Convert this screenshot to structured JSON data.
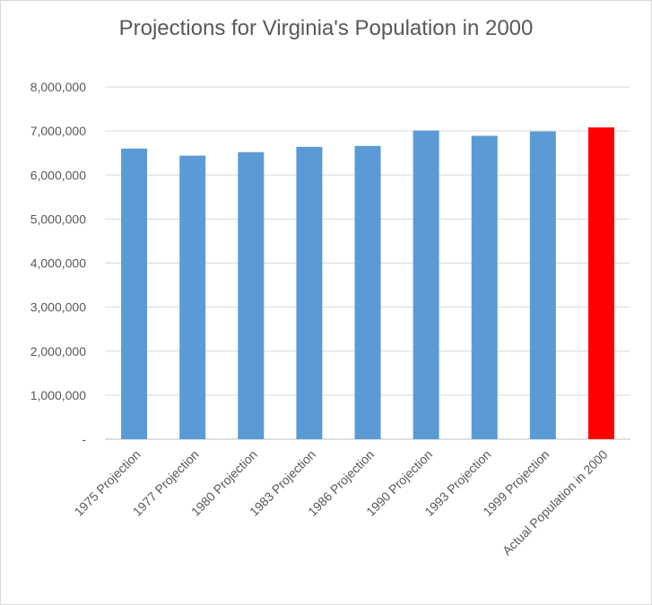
{
  "chart_data": {
    "type": "bar",
    "title": "Projections for Virginia's Population in 2000",
    "xlabel": "",
    "ylabel": "",
    "categories": [
      "1975 Projection",
      "1977 Projection",
      "1980 Projection",
      "1983 Projection",
      "1986 Projection",
      "1990 Projection",
      "1993 Projection",
      "1999 Projection",
      "Actual Population in 2000"
    ],
    "values": [
      6600000,
      6440000,
      6520000,
      6640000,
      6660000,
      7010000,
      6890000,
      6990000,
      7080000
    ],
    "bar_colors": [
      "#5b9bd5",
      "#5b9bd5",
      "#5b9bd5",
      "#5b9bd5",
      "#5b9bd5",
      "#5b9bd5",
      "#5b9bd5",
      "#5b9bd5",
      "#ff0000"
    ],
    "ylim": [
      0,
      8000000
    ],
    "yticks": [
      0,
      1000000,
      2000000,
      3000000,
      4000000,
      5000000,
      6000000,
      7000000,
      8000000
    ],
    "ytick_labels": [
      "-",
      "1,000,000",
      "2,000,000",
      "3,000,000",
      "4,000,000",
      "5,000,000",
      "6,000,000",
      "7,000,000",
      "8,000,000"
    ],
    "grid": true,
    "gridline_color": "#d9d9d9",
    "legend": "none"
  }
}
